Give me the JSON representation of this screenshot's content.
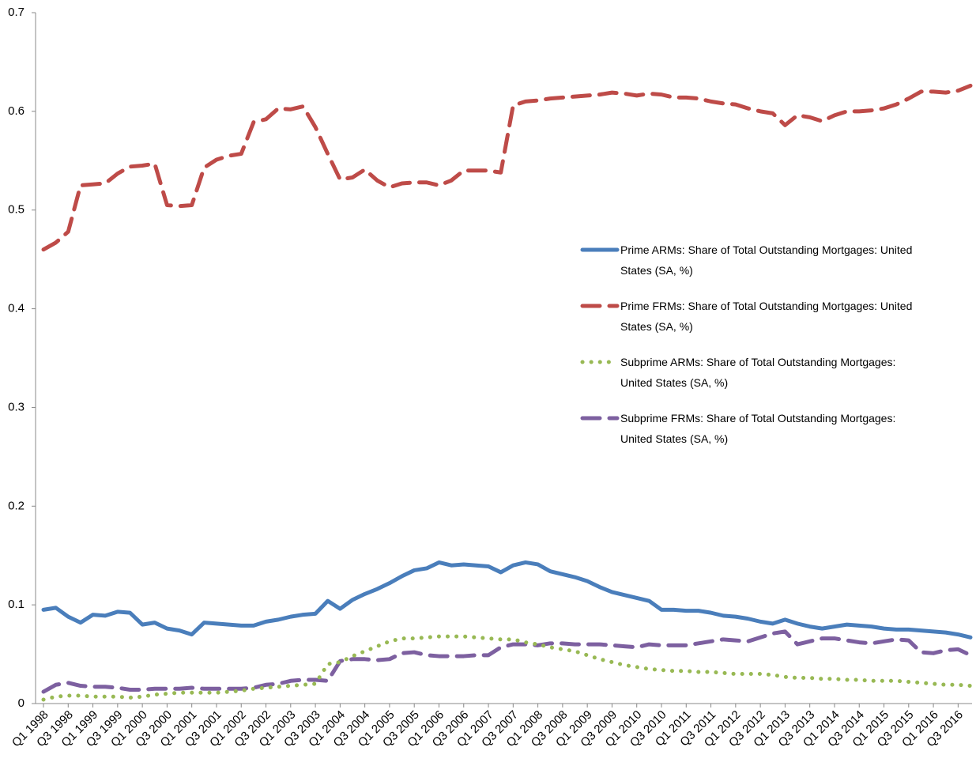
{
  "chart_data": {
    "type": "line",
    "categories": [
      "Q1 1998",
      null,
      "Q3 1998",
      null,
      "Q1 1999",
      null,
      "Q3 1999",
      null,
      "Q1 2000",
      null,
      "Q3 2000",
      null,
      "Q1 2001",
      null,
      "Q3 2001",
      null,
      "Q1 2002",
      null,
      "Q3 2002",
      null,
      "Q1 2003",
      null,
      "Q3 2003",
      null,
      "Q1 2004",
      null,
      "Q3 2004",
      null,
      "Q1 2005",
      null,
      "Q3 2005",
      null,
      "Q1 2006",
      null,
      "Q3 2006",
      null,
      "Q1 2007",
      null,
      "Q3 2007",
      null,
      "Q1 2008",
      null,
      "Q3 2008",
      null,
      "Q1 2009",
      null,
      "Q3 2009",
      null,
      "Q1 2010",
      null,
      "Q3 2010",
      null,
      "Q1 2011",
      null,
      "Q3 2011",
      null,
      "Q1 2012",
      null,
      "Q3 2012",
      null,
      "Q1 2013",
      null,
      "Q3 2013",
      null,
      "Q1 2014",
      null,
      "Q3 2014",
      null,
      "Q1 2015",
      null,
      "Q3 2015",
      null,
      "Q1 2016",
      null,
      "Q3 2016",
      null
    ],
    "series": [
      {
        "name": "Prime ARMs: Share of Total Outstanding Mortgages: United States (SA, %)",
        "color": "#4a7ebb",
        "style": "solid",
        "values": [
          0.095,
          0.097,
          0.088,
          0.082,
          0.09,
          0.089,
          0.093,
          0.092,
          0.08,
          0.082,
          0.076,
          0.074,
          0.07,
          0.082,
          0.081,
          0.08,
          0.079,
          0.079,
          0.083,
          0.085,
          0.088,
          0.09,
          0.091,
          0.104,
          0.096,
          0.105,
          0.111,
          0.116,
          0.122,
          0.129,
          0.135,
          0.137,
          0.143,
          0.14,
          0.141,
          0.14,
          0.139,
          0.133,
          0.14,
          0.143,
          0.141,
          0.134,
          0.131,
          0.128,
          0.124,
          0.118,
          0.113,
          0.11,
          0.107,
          0.104,
          0.095,
          0.095,
          0.094,
          0.094,
          0.092,
          0.089,
          0.088,
          0.086,
          0.083,
          0.081,
          0.085,
          0.081,
          0.078,
          0.076,
          0.078,
          0.08,
          0.079,
          0.078,
          0.076,
          0.075,
          0.075,
          0.074,
          0.073,
          0.072,
          0.07,
          0.067
        ]
      },
      {
        "name": "Prime FRMs: Share of Total Outstanding Mortgages: United States (SA, %)",
        "color": "#be4b48",
        "style": "dashed",
        "values": [
          0.46,
          0.467,
          0.478,
          0.525,
          0.526,
          0.527,
          0.537,
          0.544,
          0.545,
          0.547,
          0.505,
          0.504,
          0.505,
          0.543,
          0.551,
          0.555,
          0.557,
          0.589,
          0.592,
          0.603,
          0.602,
          0.605,
          0.584,
          0.557,
          0.531,
          0.533,
          0.541,
          0.53,
          0.523,
          0.527,
          0.528,
          0.528,
          0.525,
          0.53,
          0.54,
          0.54,
          0.54,
          0.538,
          0.606,
          0.61,
          0.611,
          0.613,
          0.614,
          0.615,
          0.616,
          0.617,
          0.619,
          0.618,
          0.616,
          0.618,
          0.617,
          0.614,
          0.614,
          0.613,
          0.61,
          0.608,
          0.607,
          0.603,
          0.6,
          0.598,
          0.586,
          0.596,
          0.594,
          0.59,
          0.596,
          0.6,
          0.6,
          0.601,
          0.603,
          0.607,
          0.613,
          0.62,
          0.62,
          0.619,
          0.621,
          0.626
        ]
      },
      {
        "name": "Subprime ARMs: Share of Total Outstanding Mortgages: United States (SA, %)",
        "color": "#98b954",
        "style": "dotted",
        "values": [
          0.004,
          0.007,
          0.008,
          0.008,
          0.007,
          0.007,
          0.007,
          0.006,
          0.007,
          0.009,
          0.01,
          0.011,
          0.011,
          0.011,
          0.011,
          0.012,
          0.013,
          0.015,
          0.016,
          0.017,
          0.018,
          0.019,
          0.02,
          0.04,
          0.042,
          0.048,
          0.053,
          0.058,
          0.063,
          0.066,
          0.066,
          0.067,
          0.068,
          0.068,
          0.068,
          0.067,
          0.066,
          0.065,
          0.065,
          0.062,
          0.06,
          0.057,
          0.055,
          0.053,
          0.049,
          0.045,
          0.042,
          0.039,
          0.037,
          0.035,
          0.034,
          0.033,
          0.033,
          0.032,
          0.032,
          0.031,
          0.03,
          0.03,
          0.03,
          0.029,
          0.027,
          0.026,
          0.026,
          0.025,
          0.025,
          0.024,
          0.024,
          0.023,
          0.023,
          0.023,
          0.022,
          0.021,
          0.02,
          0.019,
          0.019,
          0.018
        ]
      },
      {
        "name": "Subprime FRMs: Share of Total Outstanding Mortgages: United States (SA, %)",
        "color": "#7d60a0",
        "style": "dashed",
        "values": [
          0.012,
          0.019,
          0.021,
          0.018,
          0.017,
          0.017,
          0.016,
          0.014,
          0.014,
          0.015,
          0.015,
          0.015,
          0.016,
          0.015,
          0.015,
          0.015,
          0.015,
          0.016,
          0.019,
          0.02,
          0.023,
          0.024,
          0.024,
          0.023,
          0.043,
          0.045,
          0.045,
          0.044,
          0.045,
          0.051,
          0.052,
          0.049,
          0.048,
          0.048,
          0.048,
          0.049,
          0.049,
          0.057,
          0.06,
          0.06,
          0.059,
          0.061,
          0.061,
          0.06,
          0.06,
          0.06,
          0.059,
          0.058,
          0.057,
          0.06,
          0.059,
          0.059,
          0.059,
          0.061,
          0.063,
          0.065,
          0.064,
          0.063,
          0.067,
          0.071,
          0.073,
          0.06,
          0.063,
          0.066,
          0.066,
          0.064,
          0.062,
          0.061,
          0.063,
          0.065,
          0.064,
          0.052,
          0.051,
          0.054,
          0.055,
          0.049
        ]
      }
    ],
    "ylim": [
      0,
      0.7
    ],
    "yticks": [
      0,
      0.1,
      0.2,
      0.3,
      0.4,
      0.5,
      0.6,
      0.7
    ],
    "grid": false,
    "legend": "right"
  }
}
